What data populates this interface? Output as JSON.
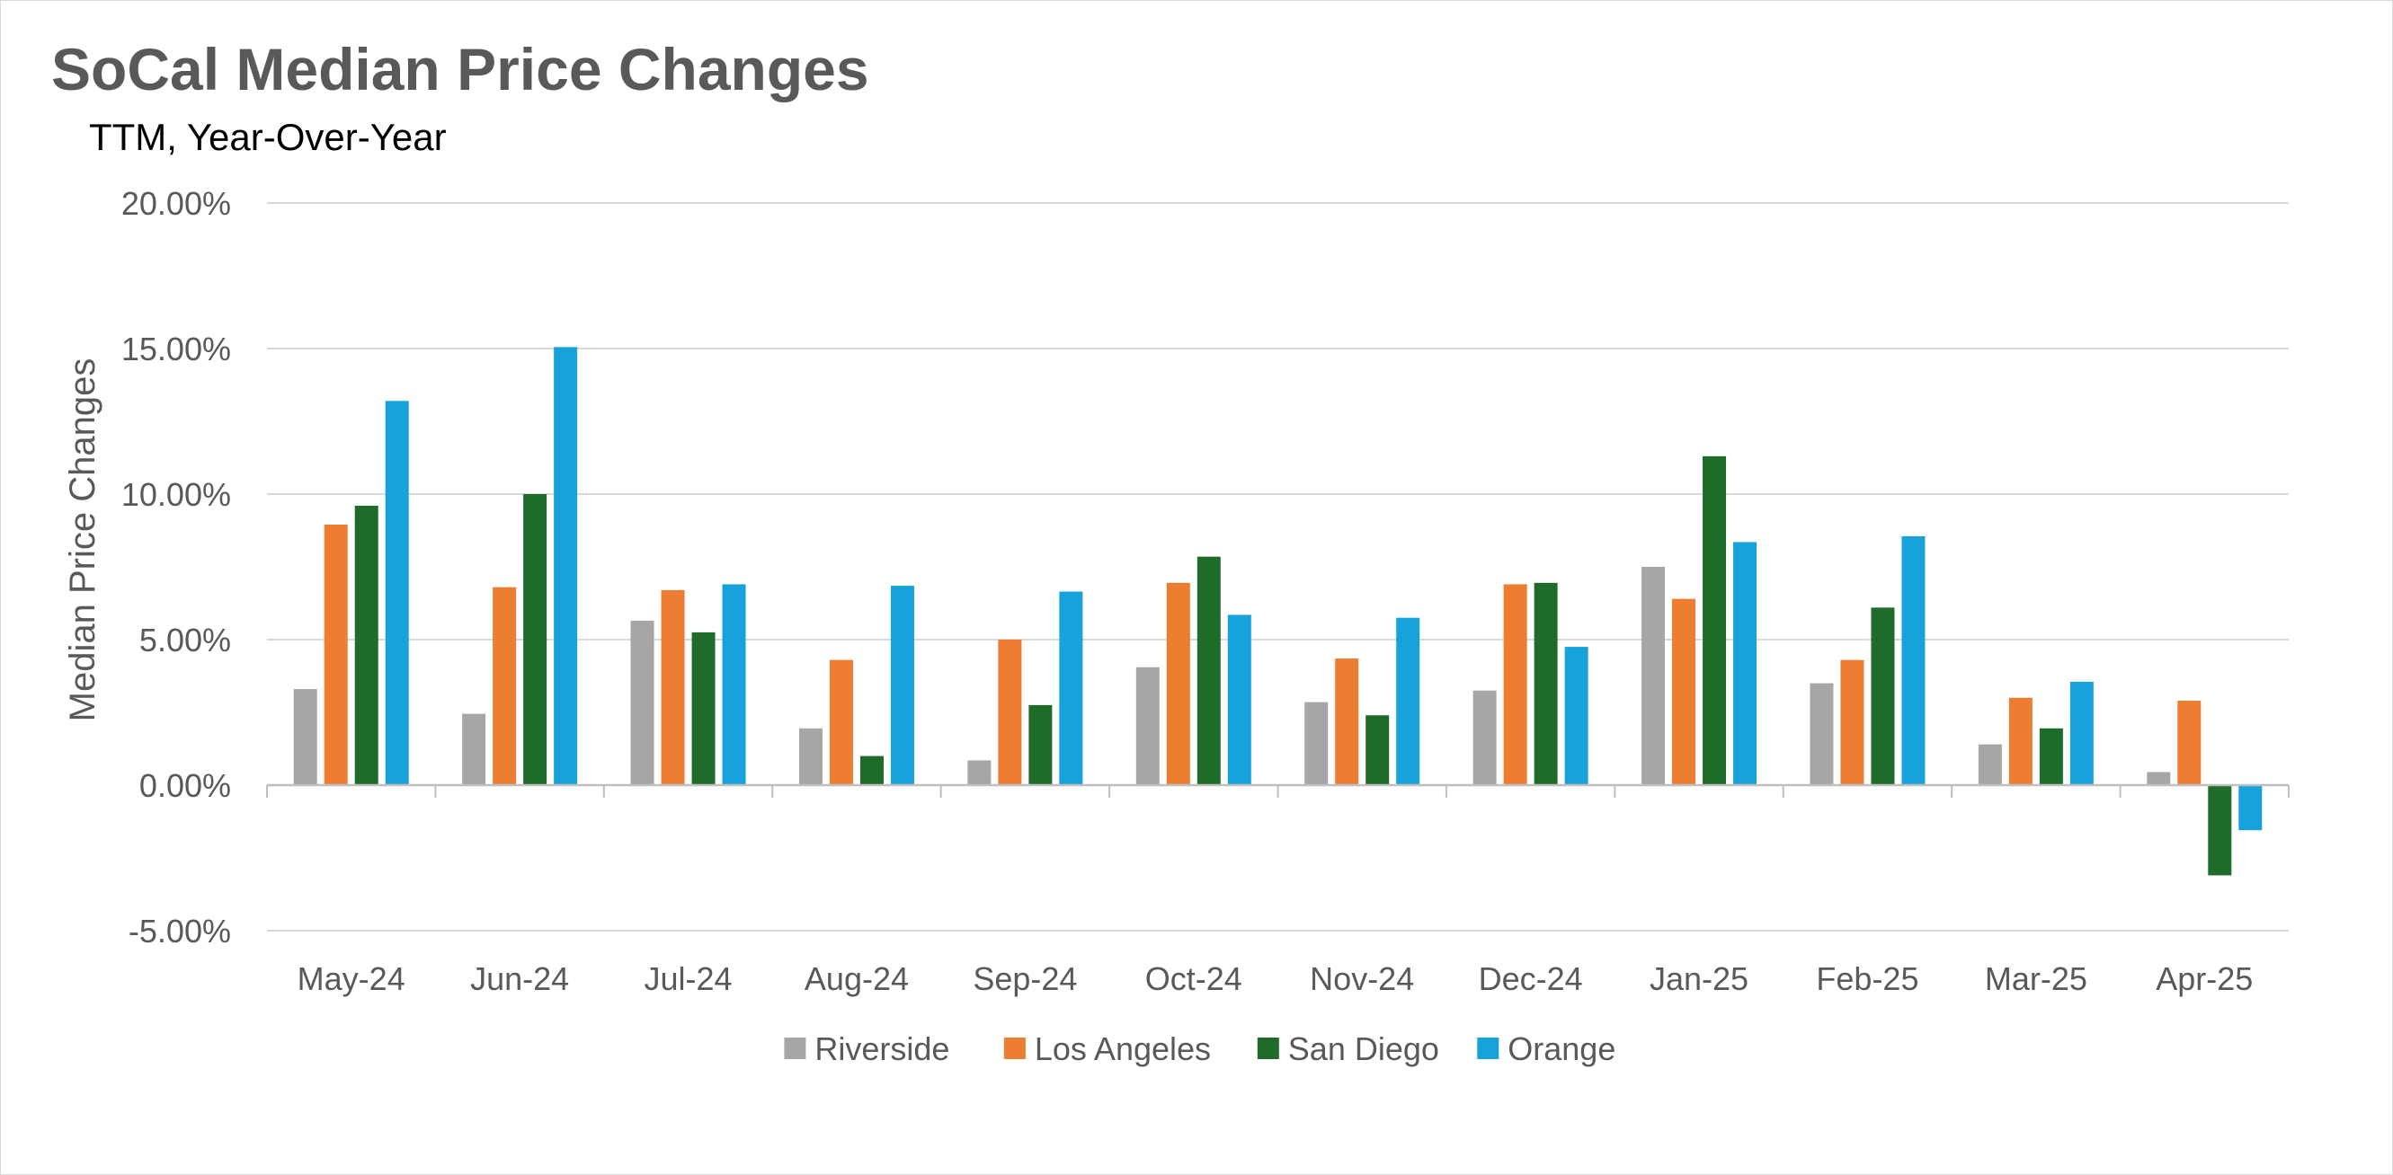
{
  "chart_data": {
    "type": "bar",
    "title": "SoCal Median Price Changes",
    "subtitle": "TTM, Year-Over-Year",
    "xlabel": "",
    "ylabel": "Median Price Changes",
    "ylim": [
      -5,
      20
    ],
    "yticks": [
      -5,
      0,
      5,
      10,
      15,
      20
    ],
    "ytick_labels": [
      "-5.00%",
      "0.00%",
      "5.00%",
      "10.00%",
      "15.00%",
      "20.00%"
    ],
    "grid": true,
    "legend_position": "bottom",
    "categories": [
      "May-24",
      "Jun-24",
      "Jul-24",
      "Aug-24",
      "Sep-24",
      "Oct-24",
      "Nov-24",
      "Dec-24",
      "Jan-25",
      "Feb-25",
      "Mar-25",
      "Apr-25"
    ],
    "series": [
      {
        "name": "Riverside",
        "color": "#a6a6a6",
        "values": [
          3.3,
          2.45,
          5.65,
          1.95,
          0.85,
          4.05,
          2.85,
          3.25,
          7.5,
          3.5,
          1.4,
          0.45
        ]
      },
      {
        "name": "Los Angeles",
        "color": "#ed7d31",
        "values": [
          8.95,
          6.8,
          6.7,
          4.3,
          5.0,
          6.95,
          4.35,
          6.9,
          6.4,
          4.3,
          3.0,
          2.9
        ]
      },
      {
        "name": "San Diego",
        "color": "#1e6b2a",
        "values": [
          9.6,
          10.0,
          5.25,
          1.0,
          2.75,
          7.85,
          2.4,
          6.95,
          11.3,
          6.1,
          1.95,
          -3.1
        ]
      },
      {
        "name": "Orange",
        "color": "#17a2db",
        "values": [
          13.2,
          15.05,
          6.9,
          6.85,
          6.65,
          5.85,
          5.75,
          4.75,
          8.35,
          8.55,
          3.55,
          -1.55
        ]
      }
    ]
  }
}
